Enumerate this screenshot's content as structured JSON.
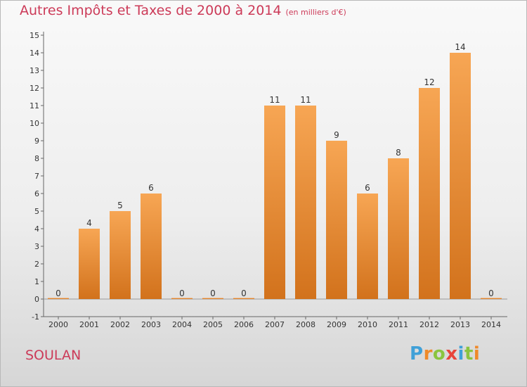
{
  "header": {
    "title": "Autres Impôts et Taxes de 2000 à 2014",
    "unit": "(en milliers d'€)"
  },
  "footer": {
    "place": "SOULAN",
    "logo": {
      "letters": [
        "P",
        "r",
        "o",
        "x",
        "i",
        "t",
        "i"
      ]
    }
  },
  "colors": {
    "title": "#cc3a58",
    "bar_top": "#f7a654",
    "bar_bottom": "#d2721c",
    "logo_letters": [
      "#3fa0d8",
      "#ef8a2a",
      "#8ac43f",
      "#e8443a",
      "#3fa0d8",
      "#8ac43f",
      "#ef8a2a"
    ]
  },
  "chart_data": {
    "type": "bar",
    "categories": [
      "2000",
      "2001",
      "2002",
      "2003",
      "2004",
      "2005",
      "2006",
      "2007",
      "2008",
      "2009",
      "2010",
      "2011",
      "2012",
      "2013",
      "2014"
    ],
    "values": [
      0,
      4,
      5,
      6,
      0,
      0,
      0,
      11,
      11,
      9,
      6,
      8,
      12,
      14,
      0
    ],
    "ylim": [
      -1,
      15
    ],
    "yticks": [
      -1,
      0,
      1,
      2,
      3,
      4,
      5,
      6,
      7,
      8,
      9,
      10,
      11,
      12,
      13,
      14,
      15
    ],
    "grid": false
  }
}
